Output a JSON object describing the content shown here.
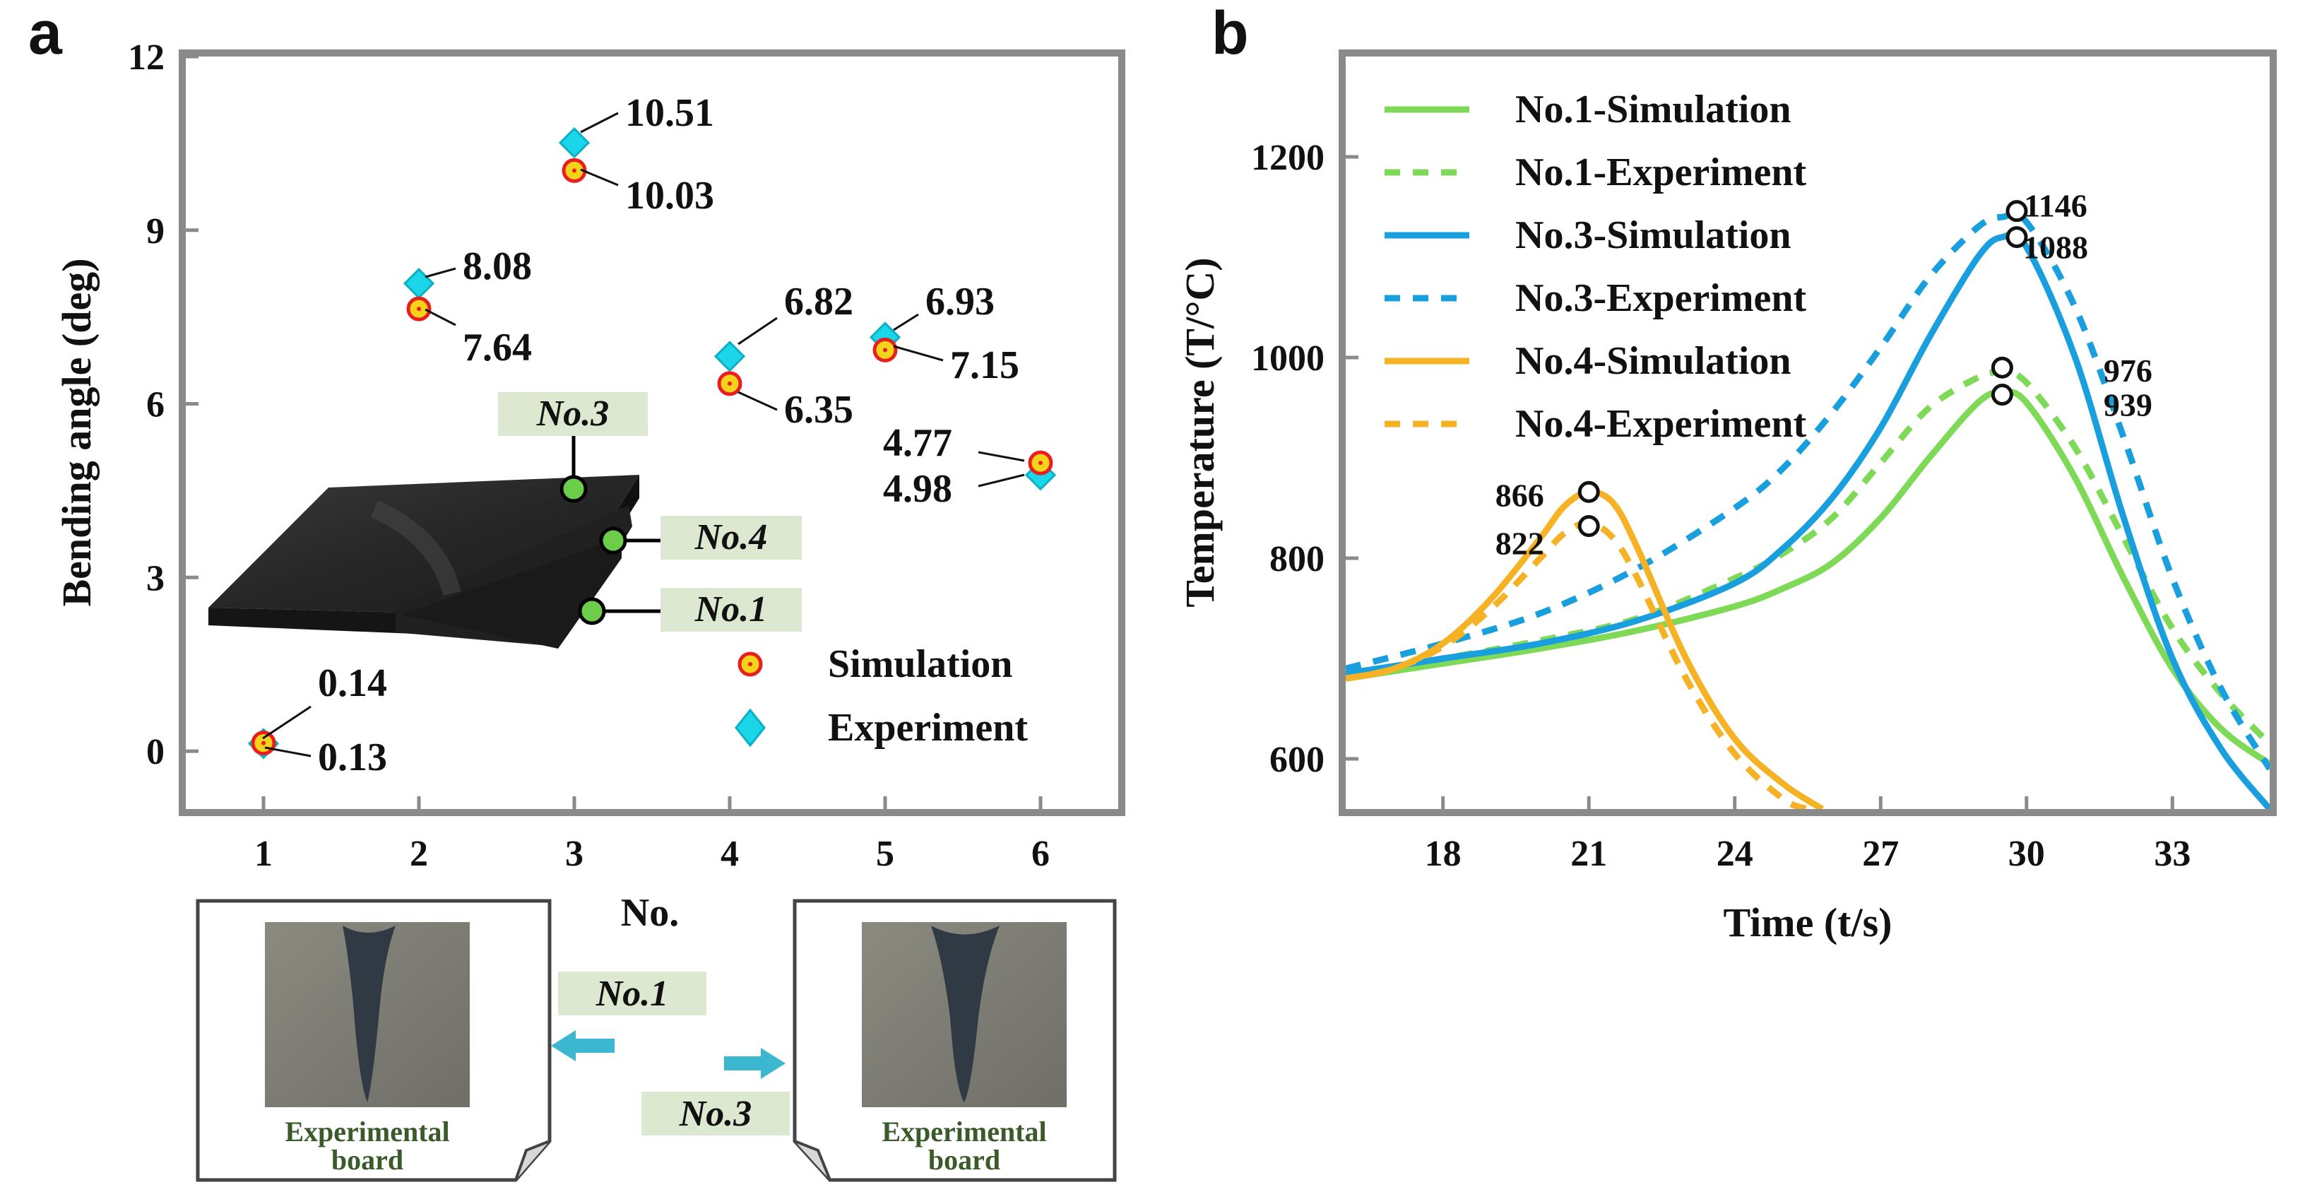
{
  "panels": {
    "a_label": "a",
    "b_label": "b"
  },
  "chart_data": [
    {
      "type": "scatter",
      "panel": "a",
      "xlabel": "No.",
      "ylabel": "Bending angle (deg)",
      "xlim": [
        0.5,
        6.5
      ],
      "ylim": [
        -1,
        12
      ],
      "xticks": [
        1,
        2,
        3,
        4,
        5,
        6
      ],
      "yticks": [
        0,
        3,
        6,
        9,
        12
      ],
      "grid": false,
      "legend": "bottom-right",
      "series": [
        {
          "name": "Simulation",
          "color": "#f5d31b",
          "edge": "#e81f1f",
          "x": [
            1,
            2,
            3,
            4,
            5,
            6
          ],
          "y": [
            0.14,
            7.64,
            10.03,
            6.35,
            6.93,
            4.98
          ]
        },
        {
          "name": "Experiment",
          "color": "#1ad6e8",
          "edge": "#0bb0c8",
          "x": [
            1,
            2,
            3,
            4,
            5,
            6
          ],
          "y": [
            0.13,
            8.08,
            10.51,
            6.82,
            7.15,
            4.77
          ]
        }
      ],
      "annotations": [
        "0.14",
        "0.13",
        "8.08",
        "7.64",
        "10.51",
        "10.03",
        "6.82",
        "6.35",
        "6.93",
        "7.15",
        "4.77",
        "4.98"
      ],
      "inset_labels": [
        "No.3",
        "No.4",
        "No.1"
      ],
      "board_labels": [
        "No.1",
        "No.3"
      ],
      "board_caption": [
        "Experimental",
        "board"
      ]
    },
    {
      "type": "line",
      "panel": "b",
      "xlabel": "Time (t/s)",
      "ylabel": "Temperature (T/°C)",
      "xlim": [
        16,
        35
      ],
      "ylim": [
        550,
        1300
      ],
      "xticks": [
        18,
        21,
        24,
        27,
        30,
        33
      ],
      "yticks": [
        600,
        800,
        1000,
        1200
      ],
      "grid": false,
      "legend": "top-left",
      "series": [
        {
          "name": "No.1-Simulation",
          "color": "#7ed957",
          "dash": false,
          "x": [
            16,
            18,
            20,
            22,
            24,
            25,
            26,
            27,
            28,
            29,
            29.5,
            30,
            31,
            32,
            33,
            34,
            35
          ],
          "y": [
            680,
            695,
            710,
            728,
            752,
            770,
            795,
            840,
            900,
            955,
            965,
            955,
            880,
            780,
            690,
            630,
            595
          ]
        },
        {
          "name": "No.1-Experiment",
          "color": "#7ed957",
          "dash": true,
          "x": [
            16,
            18,
            20,
            22,
            24,
            25,
            26,
            27,
            28,
            29,
            29.5,
            30,
            31,
            32,
            33,
            34,
            35
          ],
          "y": [
            685,
            700,
            718,
            740,
            780,
            805,
            840,
            895,
            950,
            980,
            985,
            975,
            910,
            820,
            730,
            665,
            615
          ]
        },
        {
          "name": "No.3-Simulation",
          "color": "#1a9fde",
          "dash": false,
          "x": [
            16,
            18,
            20,
            22,
            24,
            25,
            26,
            27,
            28,
            29,
            29.5,
            30,
            31,
            32,
            33,
            34,
            35
          ],
          "y": [
            685,
            700,
            715,
            738,
            775,
            810,
            860,
            930,
            1020,
            1100,
            1120,
            1110,
            1000,
            840,
            700,
            610,
            550
          ]
        },
        {
          "name": "No.3-Experiment",
          "color": "#1a9fde",
          "dash": true,
          "x": [
            16,
            18,
            20,
            22,
            24,
            25,
            26,
            27,
            28,
            29,
            29.5,
            30,
            31,
            32,
            33,
            34,
            35
          ],
          "y": [
            690,
            715,
            745,
            790,
            850,
            890,
            945,
            1010,
            1080,
            1130,
            1140,
            1135,
            1050,
            920,
            780,
            670,
            590
          ]
        },
        {
          "name": "No.4-Simulation",
          "color": "#f5b225",
          "dash": false,
          "x": [
            16,
            17,
            18,
            19,
            20,
            20.5,
            21,
            21.5,
            22,
            23,
            24,
            25,
            25.8
          ],
          "y": [
            680,
            690,
            715,
            760,
            820,
            852,
            866,
            855,
            810,
            700,
            620,
            575,
            550
          ]
        },
        {
          "name": "No.4-Experiment",
          "color": "#f5b225",
          "dash": true,
          "x": [
            16,
            17,
            18,
            19,
            20,
            20.5,
            21,
            21.5,
            22,
            23,
            24,
            25,
            25.5
          ],
          "y": [
            680,
            690,
            712,
            750,
            800,
            825,
            835,
            820,
            780,
            680,
            605,
            560,
            550
          ]
        }
      ],
      "peak_labels": [
        {
          "text": "866",
          "x": 21,
          "y": 866
        },
        {
          "text": "822",
          "x": 21,
          "y": 832
        },
        {
          "text": "1146",
          "x": 29.8,
          "y": 1146
        },
        {
          "text": "1088",
          "x": 29.8,
          "y": 1120
        },
        {
          "text": "976",
          "x": 29.5,
          "y": 990
        },
        {
          "text": "939",
          "x": 29.5,
          "y": 963
        }
      ]
    }
  ]
}
